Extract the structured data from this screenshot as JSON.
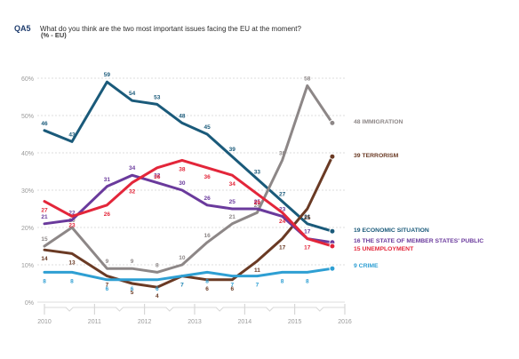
{
  "header": {
    "question_id": "QA5",
    "question_text": "What do you think are the two most important issues facing the EU at the moment?",
    "subtitle": "(% - EU)"
  },
  "colors": {
    "economic_situation": "#1a5a7a",
    "immigration": "#8d8787",
    "terrorism": "#6a3a24",
    "state_public_finances": "#6a3a9c",
    "unemployment": "#e3263a",
    "crime": "#2e9fd3"
  },
  "chart_data": {
    "type": "line",
    "title": "",
    "xlabel": "",
    "ylabel": "",
    "ylim": [
      0,
      60
    ],
    "y_ticks": [
      "0%",
      "10%",
      "20%",
      "30%",
      "40%",
      "50%",
      "60%"
    ],
    "x_tick_labels": [
      "2010",
      "2011",
      "2012",
      "2013",
      "2014",
      "2015",
      "2016"
    ],
    "x": [
      2010.0,
      2010.55,
      2011.25,
      2011.75,
      2012.25,
      2012.75,
      2013.25,
      2013.75,
      2014.25,
      2014.75,
      2015.25,
      2015.75
    ],
    "grid": true,
    "series": [
      {
        "key": "economic_situation",
        "name": "ECONOMIC SITUATION",
        "end_label": "19 ECONOMIC SITUATION",
        "values": [
          46,
          43,
          59,
          54,
          53,
          48,
          45,
          39,
          33,
          27,
          21,
          19
        ]
      },
      {
        "key": "immigration",
        "name": "IMMIGRATION",
        "end_label": "48 IMMIGRATION",
        "values": [
          15,
          20,
          9,
          9,
          8,
          10,
          16,
          21,
          24,
          38,
          58,
          48
        ]
      },
      {
        "key": "terrorism",
        "name": "TERRORISM",
        "end_label": "39 TERRORISM",
        "values": [
          14,
          13,
          7,
          5,
          4,
          7,
          6,
          6,
          11,
          17,
          25,
          39
        ]
      },
      {
        "key": "state_public_finances",
        "name": "THE STATE OF MEMBER STATES' PUBLIC",
        "end_label": "16 THE STATE OF MEMBER STATES' PUBLIC",
        "values": [
          21,
          22,
          31,
          34,
          32,
          30,
          26,
          25,
          25,
          23,
          17,
          16
        ]
      },
      {
        "key": "unemployment",
        "name": "UNEMPLOYMENT",
        "end_label": "15 UNEMPLOYMENT",
        "values": [
          27,
          23,
          26,
          32,
          36,
          38,
          36,
          34,
          29,
          24,
          17,
          15
        ]
      },
      {
        "key": "crime",
        "name": "CRIME",
        "end_label": "9 CRIME",
        "values": [
          8,
          8,
          6,
          6,
          6,
          7,
          8,
          7,
          7,
          8,
          8,
          9
        ]
      }
    ]
  }
}
